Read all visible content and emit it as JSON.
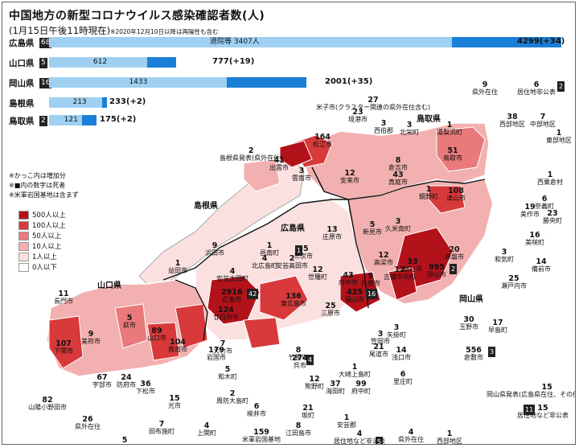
{
  "title": "中国地方の新型コロナウイルス感染確認者数(人)",
  "subtitle": "(1月15日午後11時現在)",
  "subtitle_note": "※2020年12月10日以降は再陽性も含む",
  "bars": [
    {
      "pref": "広島県",
      "deaths": "68",
      "label_mid": "退院等 3407人",
      "total": "4299(+34)",
      "hosp_frac": 0.77,
      "new_frac": 0.21
    },
    {
      "pref": "山口県",
      "deaths": "5",
      "label_mid": "612",
      "total": "777(+19)",
      "hosp_frac": 0.61,
      "new_frac": 0.18
    },
    {
      "pref": "岡山県",
      "deaths": "16",
      "label_mid": "1433",
      "total": "2001(+35)",
      "hosp_frac": 0.65,
      "new_frac": 0.29
    },
    {
      "pref": "島根県",
      "deaths": "",
      "label_mid": "213",
      "total": "233(+2)",
      "hosp_frac": 0.91,
      "new_frac": 0.09
    },
    {
      "pref": "鳥取県",
      "deaths": "2",
      "label_mid": "121",
      "total": "175(+2)",
      "hosp_frac": 0.69,
      "new_frac": 0.3
    }
  ],
  "notes": [
    "※かっこ内は増加分",
    "※■内の数字は死者",
    "※米軍岩国基地は含まず"
  ],
  "legend": [
    {
      "label": "500人以上",
      "color": "#b3121b"
    },
    {
      "label": "100人以上",
      "color": "#d8393a"
    },
    {
      "label": "50人以上",
      "color": "#e9797a"
    },
    {
      "label": "10人以上",
      "color": "#f3b0b0"
    },
    {
      "label": "1人以上",
      "color": "#fbe0e0"
    },
    {
      "label": "0人以下",
      "color": "#ffffff"
    }
  ],
  "prefs": {
    "shimane": "島根県",
    "tottori": "鳥取県",
    "hiroshima": "広島県",
    "yamaguchi": "山口県",
    "okayama": "岡山県"
  },
  "labels": [
    {
      "n": "27",
      "t": "米子市(クラスター関連の県外在住含む)"
    },
    {
      "n": "23",
      "t": "境港市"
    },
    {
      "n": "3",
      "t": "西伯郡"
    },
    {
      "n": "3",
      "t": "北栄町"
    },
    {
      "n": "1",
      "t": "湯梨浜町"
    },
    {
      "n": "9",
      "t": "県外在住"
    },
    {
      "n": "6",
      "t": "居住地非公表"
    },
    {
      "n": "2",
      "t": ""
    },
    {
      "n": "38",
      "t": "西部地区"
    },
    {
      "n": "7",
      "t": "中部地区"
    },
    {
      "n": "1",
      "t": "東部地区"
    },
    {
      "n": "164",
      "t": "松江市"
    },
    {
      "n": "2",
      "t": "島根県発表(県外在住)"
    },
    {
      "n": "41",
      "t": "出雲市"
    },
    {
      "n": "3",
      "t": "雲南市"
    },
    {
      "n": "12",
      "t": "安来市"
    },
    {
      "n": "8",
      "t": "倉吉市"
    },
    {
      "n": "51",
      "t": "鳥取市"
    },
    {
      "n": "1",
      "t": "西粟倉村"
    },
    {
      "n": "43",
      "t": "真庭市"
    },
    {
      "n": "1",
      "t": "鏡野町"
    },
    {
      "n": "108",
      "t": "津山市"
    },
    {
      "n": "6",
      "t": "奈義町"
    },
    {
      "n": "19",
      "t": "美作市"
    },
    {
      "n": "23",
      "t": "勝央町"
    },
    {
      "n": "16",
      "t": "美咲町"
    },
    {
      "n": "1",
      "t": "邑南町"
    },
    {
      "n": "9",
      "t": "浜田市"
    },
    {
      "n": "13",
      "t": "庄原市"
    },
    {
      "n": "5",
      "t": "新見市"
    },
    {
      "n": "3",
      "t": "久米南町"
    },
    {
      "n": "95",
      "t": "三次市"
    },
    {
      "n": "1",
      "t": ""
    },
    {
      "n": "12",
      "t": "高梁市"
    },
    {
      "n": "12",
      "t": "吉備中央町"
    },
    {
      "n": "1",
      "t": "益田市"
    },
    {
      "n": "4",
      "t": "北広島町"
    },
    {
      "n": "2",
      "t": "安芸高田市"
    },
    {
      "n": "33",
      "t": "総社市"
    },
    {
      "n": "995",
      "t": "岡山市"
    },
    {
      "n": "2",
      "t": ""
    },
    {
      "n": "20",
      "t": "赤磐市"
    },
    {
      "n": "3",
      "t": "和気町"
    },
    {
      "n": "14",
      "t": "備前市"
    },
    {
      "n": "25",
      "t": "瀬戸内市"
    },
    {
      "n": "4",
      "t": "安芸太田町"
    },
    {
      "n": "12",
      "t": "世羅町"
    },
    {
      "n": "43",
      "t": "府中市"
    },
    {
      "n": "9",
      "t": "井原市"
    },
    {
      "n": "11",
      "t": "長門市"
    },
    {
      "n": "2916",
      "t": "広島市"
    },
    {
      "n": "42",
      "t": ""
    },
    {
      "n": "136",
      "t": "東広島市"
    },
    {
      "n": "425",
      "t": "福山市"
    },
    {
      "n": "16",
      "t": ""
    },
    {
      "n": "25",
      "t": "三原市"
    },
    {
      "n": "124",
      "t": "廿日市市"
    },
    {
      "n": "5",
      "t": "萩市"
    },
    {
      "n": "9",
      "t": "美祢市"
    },
    {
      "n": "89",
      "t": "山口市"
    },
    {
      "n": "104",
      "t": "周南市"
    },
    {
      "n": "179",
      "t": "岩国市"
    },
    {
      "n": "107",
      "t": "下関市"
    },
    {
      "n": "7",
      "t": "大竹市"
    },
    {
      "n": "5",
      "t": "和木町"
    },
    {
      "n": "8",
      "t": "竹原市"
    },
    {
      "n": "21",
      "t": "尾道市"
    },
    {
      "n": "3",
      "t": "笠岡市"
    },
    {
      "n": "3",
      "t": "矢掛町"
    },
    {
      "n": "30",
      "t": "玉野市"
    },
    {
      "n": "17",
      "t": "早島町"
    },
    {
      "n": "14",
      "t": "浅口市"
    },
    {
      "n": "556",
      "t": "倉敷市"
    },
    {
      "n": "3",
      "t": ""
    },
    {
      "n": "274",
      "t": "呉市"
    },
    {
      "n": "4",
      "t": ""
    },
    {
      "n": "1",
      "t": "大崎上島町"
    },
    {
      "n": "6",
      "t": "里庄町"
    },
    {
      "n": "12",
      "t": "熊野町"
    },
    {
      "n": "37",
      "t": "海田町"
    },
    {
      "n": "99",
      "t": "府中町"
    },
    {
      "n": "67",
      "t": "宇部市"
    },
    {
      "n": "24",
      "t": "防府市"
    },
    {
      "n": "36",
      "t": "下松市"
    },
    {
      "n": "15",
      "t": "光市"
    },
    {
      "n": "2",
      "t": "周防大島町"
    },
    {
      "n": "82",
      "t": "山陽小野田市"
    },
    {
      "n": "7",
      "t": "田布施町"
    },
    {
      "n": "6",
      "t": "柳井市"
    },
    {
      "n": "21",
      "t": "坂町"
    },
    {
      "n": "1",
      "t": "安芸郡"
    },
    {
      "n": "8",
      "t": "江田島市"
    },
    {
      "n": "15",
      "t": "岡山県発表(広島県在住、その他県外在住)"
    },
    {
      "n": "26",
      "t": "県外在住"
    },
    {
      "n": "5",
      "t": "居住地など非公表"
    },
    {
      "n": "4",
      "t": "上関町"
    },
    {
      "n": "159",
      "t": "米軍岩国基地"
    },
    {
      "n": "4",
      "t": "居住地など非公表"
    },
    {
      "n": "5",
      "t": ""
    },
    {
      "n": "4",
      "t": "県外在住"
    },
    {
      "n": "1",
      "t": "西部地区"
    },
    {
      "n": "15",
      "t": "居住地など非公表"
    },
    {
      "n": "11",
      "t": ""
    }
  ]
}
